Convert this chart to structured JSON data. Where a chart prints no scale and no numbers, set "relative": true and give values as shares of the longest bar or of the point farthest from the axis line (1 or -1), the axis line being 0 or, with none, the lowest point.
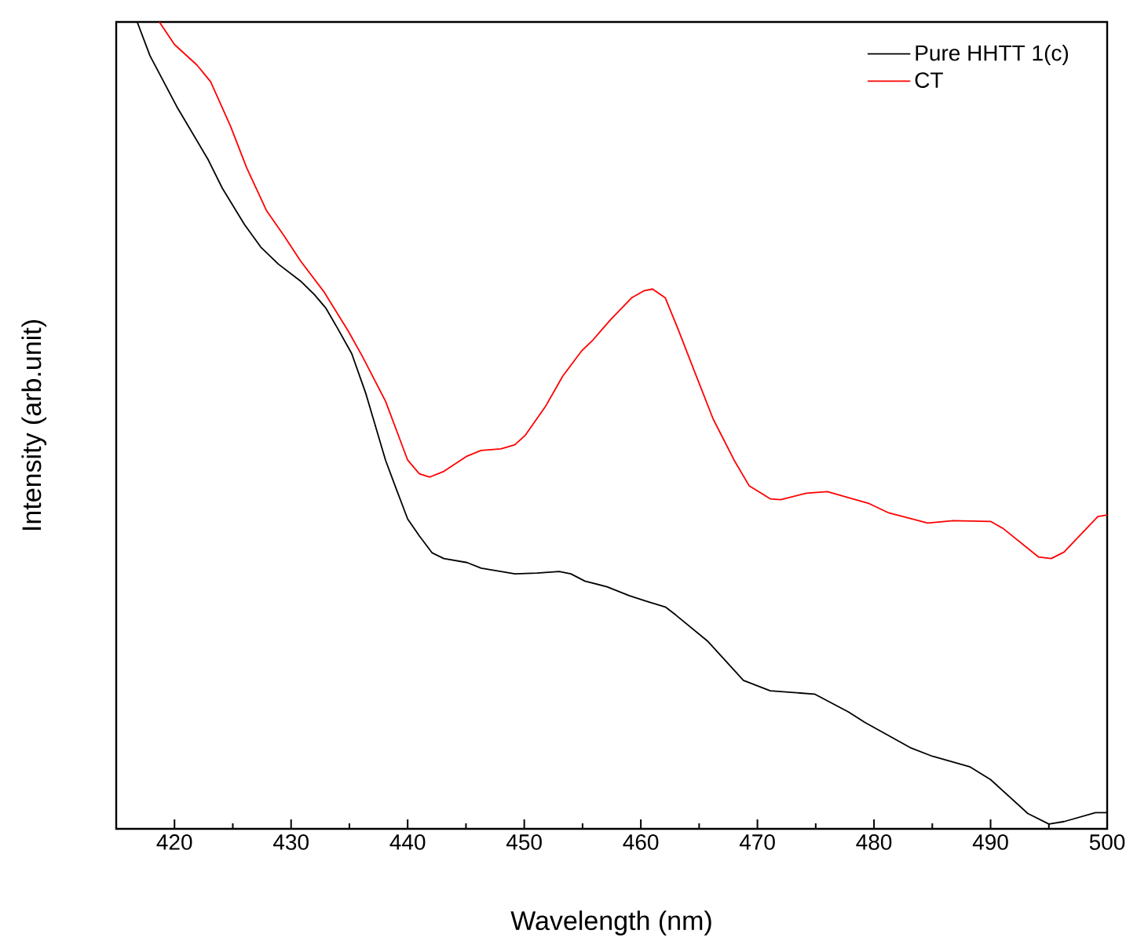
{
  "chart_data": {
    "type": "line",
    "xlabel": "Wavelength (nm)",
    "ylabel": "Intensity (arb.unit)",
    "relative": true,
    "xlim": [
      415,
      500
    ],
    "xticks": [
      420,
      430,
      440,
      450,
      460,
      470,
      480,
      490,
      500
    ],
    "legend": "top right",
    "grid": false,
    "marker": "none",
    "line_style": "solid",
    "series": [
      {
        "name": "Pure HHTT 1(c)",
        "color": "#000000",
        "x": [
          416.8,
          417.9,
          420.2,
          422.9,
          424.1,
          426.0,
          427.4,
          428.9,
          430.8,
          432.0,
          433.0,
          434.0,
          435.2,
          436.4,
          438.1,
          439.0,
          440.0,
          441.0,
          442.1,
          443.1,
          445.1,
          446.3,
          449.2,
          451.1,
          453.0,
          454.0,
          455.2,
          457.1,
          459.0,
          460.5,
          462.1,
          463.0,
          465.7,
          468.8,
          471.1,
          474.9,
          477.8,
          479.2,
          483.2,
          485.0,
          488.2,
          490.0,
          493.2,
          495.0,
          496.3,
          499.0,
          500
        ],
        "values": [
          1.0,
          0.958,
          0.895,
          0.829,
          0.794,
          0.749,
          0.721,
          0.7,
          0.679,
          0.662,
          0.645,
          0.62,
          0.589,
          0.54,
          0.457,
          0.422,
          0.384,
          0.363,
          0.342,
          0.335,
          0.33,
          0.323,
          0.316,
          0.317,
          0.319,
          0.316,
          0.307,
          0.3,
          0.289,
          0.282,
          0.275,
          0.265,
          0.233,
          0.184,
          0.171,
          0.167,
          0.145,
          0.132,
          0.1,
          0.09,
          0.077,
          0.061,
          0.019,
          0.006,
          0.009,
          0.02,
          0.02
        ]
      },
      {
        "name": "CT",
        "color": "#ff0000",
        "x": [
          418.7,
          420.0,
          421.9,
          423.1,
          424.8,
          426.2,
          427.9,
          429.4,
          430.8,
          432.8,
          434.9,
          436.1,
          438.1,
          440.0,
          441.0,
          441.9,
          443.1,
          445.1,
          446.3,
          448.0,
          449.2,
          450.1,
          451.8,
          453.3,
          454.9,
          455.9,
          457.4,
          459.2,
          460.3,
          461.0,
          462.1,
          463.2,
          464.6,
          466.2,
          468.0,
          469.3,
          471.1,
          472.0,
          474.2,
          476.0,
          479.6,
          481.2,
          484.6,
          486.8,
          490.0,
          491.1,
          494.1,
          495.2,
          496.3,
          499.2,
          500
        ],
        "values": [
          1.0,
          0.972,
          0.947,
          0.926,
          0.871,
          0.819,
          0.766,
          0.735,
          0.704,
          0.666,
          0.617,
          0.586,
          0.53,
          0.457,
          0.44,
          0.436,
          0.443,
          0.462,
          0.469,
          0.471,
          0.476,
          0.488,
          0.523,
          0.561,
          0.592,
          0.606,
          0.631,
          0.658,
          0.667,
          0.669,
          0.658,
          0.619,
          0.567,
          0.508,
          0.457,
          0.425,
          0.409,
          0.408,
          0.416,
          0.418,
          0.403,
          0.392,
          0.379,
          0.382,
          0.381,
          0.372,
          0.337,
          0.335,
          0.343,
          0.387,
          0.389
        ]
      }
    ]
  }
}
